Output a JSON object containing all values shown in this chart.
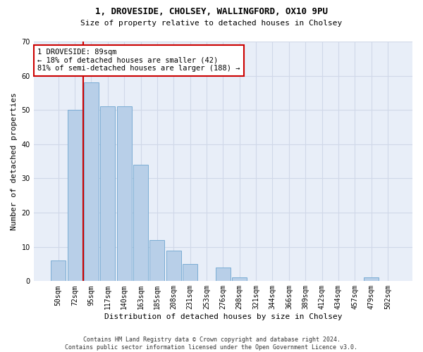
{
  "title_line1": "1, DROVESIDE, CHOLSEY, WALLINGFORD, OX10 9PU",
  "title_line2": "Size of property relative to detached houses in Cholsey",
  "xlabel": "Distribution of detached houses by size in Cholsey",
  "ylabel": "Number of detached properties",
  "footnote": "Contains HM Land Registry data © Crown copyright and database right 2024.\nContains public sector information licensed under the Open Government Licence v3.0.",
  "bar_labels": [
    "50sqm",
    "72sqm",
    "95sqm",
    "117sqm",
    "140sqm",
    "163sqm",
    "185sqm",
    "208sqm",
    "231sqm",
    "253sqm",
    "276sqm",
    "298sqm",
    "321sqm",
    "344sqm",
    "366sqm",
    "389sqm",
    "412sqm",
    "434sqm",
    "457sqm",
    "479sqm",
    "502sqm"
  ],
  "bar_values": [
    6,
    50,
    58,
    51,
    51,
    34,
    12,
    9,
    5,
    0,
    4,
    1,
    0,
    0,
    0,
    0,
    0,
    0,
    0,
    1,
    0
  ],
  "bar_color": "#b8cfe8",
  "bar_edge_color": "#7aacd4",
  "grid_color": "#d0d8e8",
  "background_color": "#e8eef8",
  "property_sqm": 89,
  "property_label": "1 DROVESIDE: 89sqm",
  "annotation_line1": "← 18% of detached houses are smaller (42)",
  "annotation_line2": "81% of semi-detached houses are larger (188) →",
  "annotation_box_color": "#ffffff",
  "annotation_box_edge_color": "#cc0000",
  "red_line_color": "#cc0000",
  "ylim": [
    0,
    70
  ],
  "yticks": [
    0,
    10,
    20,
    30,
    40,
    50,
    60,
    70
  ],
  "title1_fontsize": 9,
  "title2_fontsize": 8,
  "xlabel_fontsize": 8,
  "ylabel_fontsize": 8,
  "tick_fontsize": 7,
  "annot_fontsize": 7.5,
  "footnote_fontsize": 6
}
